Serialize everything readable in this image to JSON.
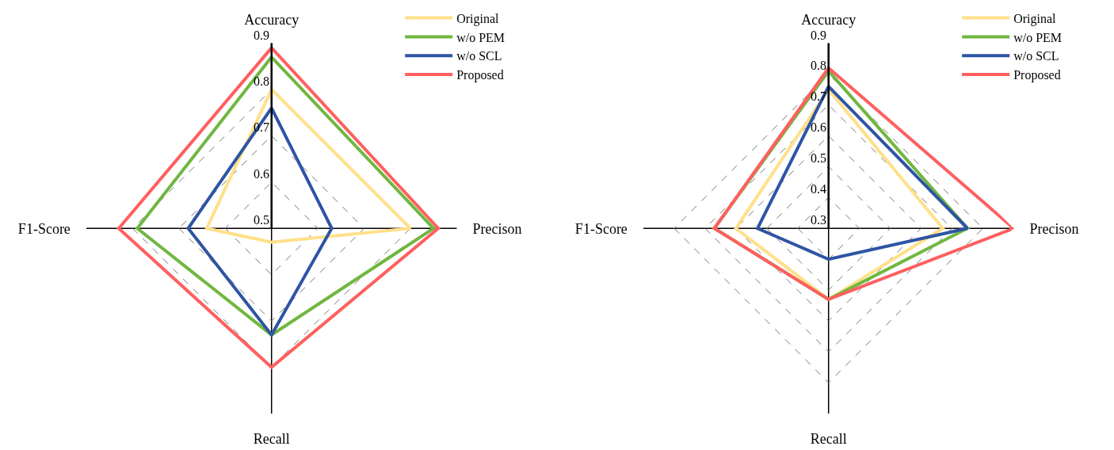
{
  "chart_data": [
    {
      "type": "radar",
      "categories": [
        "Accuracy",
        "Precison",
        "Recall",
        "F1-Score"
      ],
      "ylim": [
        0.5,
        0.9
      ],
      "yticks": [
        0.5,
        0.6,
        0.7,
        0.8,
        0.9
      ],
      "grid": true,
      "legend": "top right",
      "marker": "none",
      "series": [
        {
          "name": "Original",
          "color": "#ffe08a",
          "values": [
            0.8,
            0.8,
            0.53,
            0.64
          ]
        },
        {
          "name": "w/o PEM",
          "color": "#70b740",
          "values": [
            0.87,
            0.85,
            0.73,
            0.79
          ]
        },
        {
          "name": "w/o SCL",
          "color": "#2e54a4",
          "values": [
            0.76,
            0.63,
            0.73,
            0.68
          ]
        },
        {
          "name": "Proposed",
          "color": "#ff5f5f",
          "values": [
            0.89,
            0.86,
            0.8,
            0.83
          ]
        }
      ]
    },
    {
      "type": "radar",
      "categories": [
        "Accuracy",
        "Precison",
        "Recall",
        "F1-Score"
      ],
      "ylim": [
        0.3,
        0.9
      ],
      "yticks": [
        0.3,
        0.4,
        0.5,
        0.6,
        0.7,
        0.8,
        0.9
      ],
      "grid": true,
      "legend": "top right",
      "marker": "none",
      "series": [
        {
          "name": "Original",
          "color": "#ffe08a",
          "values": [
            0.75,
            0.67,
            0.53,
            0.6
          ]
        },
        {
          "name": "w/o PEM",
          "color": "#70b740",
          "values": [
            0.81,
            0.75,
            0.53,
            0.67
          ]
        },
        {
          "name": "w/o SCL",
          "color": "#2e54a4",
          "values": [
            0.76,
            0.75,
            0.4,
            0.53
          ]
        },
        {
          "name": "Proposed",
          "color": "#ff5f5f",
          "values": [
            0.82,
            0.9,
            0.53,
            0.67
          ]
        }
      ]
    }
  ]
}
